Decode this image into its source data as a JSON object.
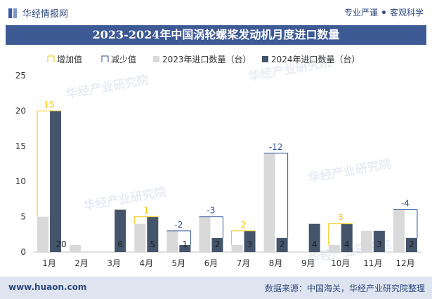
{
  "header": {
    "brand": "华经情报网",
    "tag1": "专业严谨",
    "tag2": "客观科学",
    "title": "2023-2024年中国涡轮螺桨发动机月度进口数量"
  },
  "footer": {
    "website": "www.huaon.com",
    "source": "数据来源：中国海关，华经产业研究院整理"
  },
  "watermark": "华经产业研究院",
  "colors": {
    "increase": "#f5c400",
    "decrease": "#2f5597",
    "series2023": "#d9d9d9",
    "series2024": "#44546a"
  },
  "chart_data": {
    "type": "bar",
    "categories": [
      "1月",
      "2月",
      "3月",
      "4月",
      "5月",
      "6月",
      "7月",
      "8月",
      "9月",
      "10月",
      "11月",
      "12月"
    ],
    "legend": [
      "增加值",
      "减少值",
      "2023年进口数量（台）",
      "2024年进口数量（台）"
    ],
    "series": [
      {
        "name": "2023年进口数量（台）",
        "values": [
          5,
          1,
          0,
          4,
          3,
          5,
          1,
          14,
          0,
          1,
          3,
          6
        ]
      },
      {
        "name": "2024年进口数量（台）",
        "values": [
          20,
          0,
          6,
          5,
          1,
          2,
          3,
          2,
          4,
          4,
          3,
          2
        ]
      }
    ],
    "change_labels": [
      "15",
      "",
      "",
      "1",
      "-2",
      "-3",
      "2",
      "-12",
      "",
      "3",
      "",
      "-4"
    ],
    "bar_labels_2024": [
      "20",
      "",
      "6",
      "5",
      "1",
      "2",
      "3",
      "2",
      "4",
      "4",
      "3",
      "2"
    ],
    "yticks": [
      "0",
      "5",
      "10",
      "15",
      "20",
      "25"
    ],
    "ylim": [
      0,
      25
    ]
  }
}
